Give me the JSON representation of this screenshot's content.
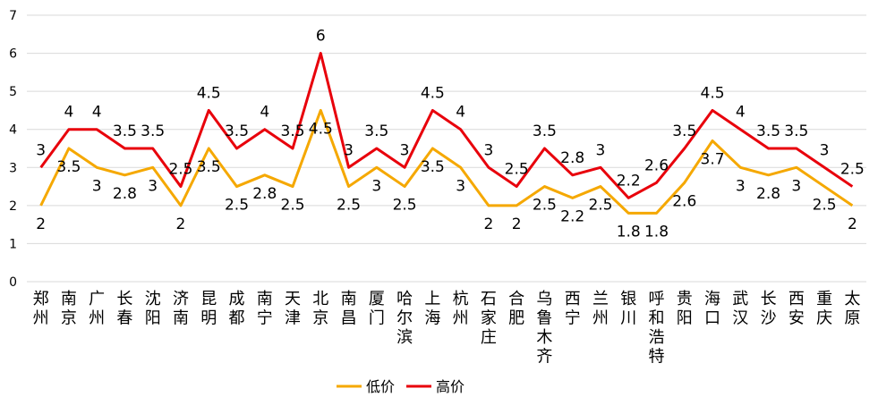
{
  "chart_data": {
    "type": "line",
    "categories": [
      "郑州",
      "南京",
      "广州",
      "长春",
      "沈阳",
      "济南",
      "昆明",
      "成都",
      "南宁",
      "天津",
      "北京",
      "南昌",
      "厦门",
      "哈尔滨",
      "上海",
      "杭州",
      "石家庄",
      "合肥",
      "乌鲁木齐",
      "西宁",
      "兰州",
      "银川",
      "呼和浩特",
      "贵阳",
      "海口",
      "武汉",
      "长沙",
      "西安",
      "重庆",
      "太原"
    ],
    "series": [
      {
        "name": "低价",
        "color": "#F5A800",
        "label_position": "below",
        "values": [
          2,
          3.5,
          3,
          2.8,
          3,
          2,
          3.5,
          2.5,
          2.8,
          2.5,
          4.5,
          2.5,
          3,
          2.5,
          3.5,
          3,
          2,
          2,
          2.5,
          2.2,
          2.5,
          1.8,
          1.8,
          2.6,
          3.7,
          3,
          2.8,
          3,
          2.5,
          2
        ]
      },
      {
        "name": "高价",
        "color": "#E8000B",
        "label_position": "above",
        "values": [
          3,
          4,
          4,
          3.5,
          3.5,
          2.5,
          4.5,
          3.5,
          4,
          3.5,
          6,
          3,
          3.5,
          3,
          4.5,
          4,
          3,
          2.5,
          3.5,
          2.8,
          3,
          2.2,
          2.6,
          3.5,
          4.5,
          4,
          3.5,
          3.5,
          3,
          2.5
        ]
      }
    ],
    "ylim": [
      0,
      7
    ],
    "yticks": [
      0,
      1,
      2,
      3,
      4,
      5,
      6,
      7
    ],
    "grid": true,
    "legend": "bottom",
    "title": "",
    "xlabel": "",
    "ylabel": ""
  }
}
